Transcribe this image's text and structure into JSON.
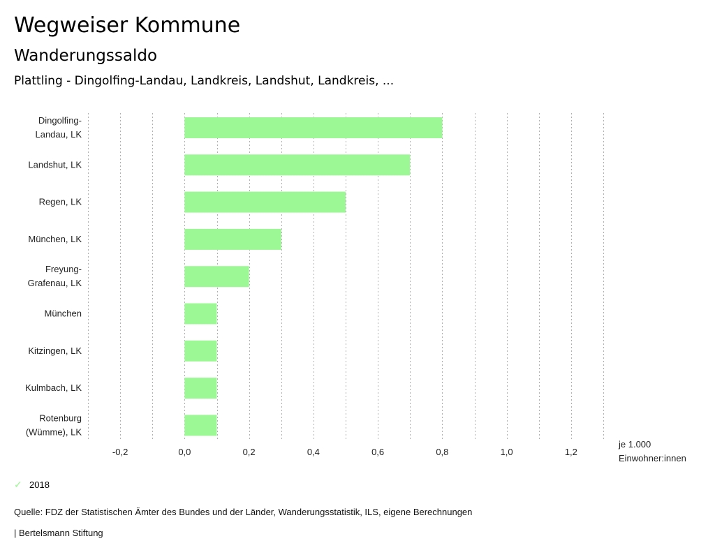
{
  "header": {
    "title": "Wegweiser Kommune",
    "subtitle": "Wanderungssaldo",
    "context": "Plattling - Dingolfing-Landau, Landkreis, Landshut, Landkreis, ..."
  },
  "chart_data": {
    "type": "bar",
    "orientation": "horizontal",
    "title": "Wanderungssaldo",
    "xlabel": "je 1.000 Einwohner:innen",
    "xlabel_lines": [
      "je 1.000",
      "Einwohner:innen"
    ],
    "ylabel": "",
    "xlim": [
      -0.3,
      1.3
    ],
    "grid": true,
    "grid_step": 0.1,
    "x_ticks": [
      -0.2,
      0.0,
      0.2,
      0.4,
      0.6,
      0.8,
      1.0,
      1.2
    ],
    "x_tick_labels": [
      "-0,2",
      "0,0",
      "0,2",
      "0,4",
      "0,6",
      "0,8",
      "1,0",
      "1,2"
    ],
    "categories": [
      [
        "Dingolfing-",
        "Landau, LK"
      ],
      [
        "Landshut, LK"
      ],
      [
        "Regen, LK"
      ],
      [
        "München, LK"
      ],
      [
        "Freyung-",
        "Grafenau, LK"
      ],
      [
        "München"
      ],
      [
        "Kitzingen, LK"
      ],
      [
        "Kulmbach, LK"
      ],
      [
        "Rotenburg",
        "(Wümme), LK"
      ]
    ],
    "series": [
      {
        "name": "2018",
        "color": "#9cf894",
        "values": [
          0.8,
          0.7,
          0.5,
          0.3,
          0.2,
          0.1,
          0.1,
          0.1,
          0.1
        ]
      }
    ],
    "legend": {
      "position": "bottom-left",
      "entries": [
        "2018"
      ]
    }
  },
  "legend": {
    "label": "2018",
    "icon": "check-icon"
  },
  "footer": {
    "source": "Quelle: FDZ der Statistischen Ämter des Bundes und der Länder, Wanderungsstatistik, ILS, eigene Berechnungen",
    "credit": "| Bertelsmann Stiftung"
  }
}
